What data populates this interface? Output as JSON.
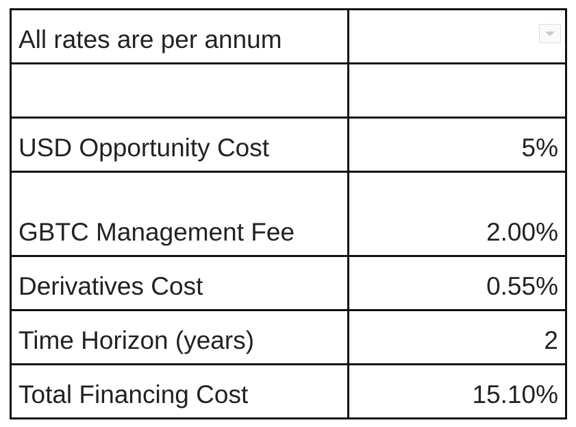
{
  "table": {
    "header": "All rates are per annum",
    "rows": [
      [
        "USD Opportunity Cost",
        "5%"
      ],
      [
        "GBTC Management Fee",
        "2.00%"
      ],
      [
        "Derivatives Cost",
        "0.55%"
      ],
      [
        "Time Horizon (years)",
        "2"
      ],
      [
        "Total Financing Cost",
        "15.10%"
      ]
    ]
  }
}
